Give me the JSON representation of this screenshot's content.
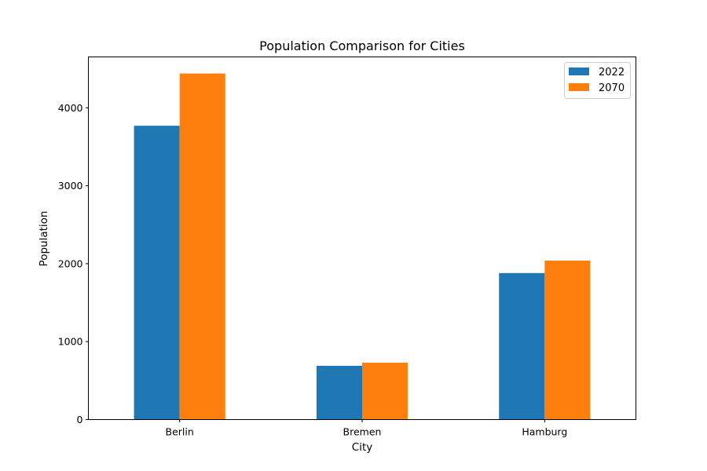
{
  "chart_data": {
    "type": "bar",
    "title": "Population Comparison for Cities",
    "xlabel": "City",
    "ylabel": "Population",
    "categories": [
      "Berlin",
      "Bremen",
      "Hamburg"
    ],
    "series": [
      {
        "name": "2022",
        "values": [
          3770,
          690,
          1880
        ],
        "color": "#1f77b4"
      },
      {
        "name": "2070",
        "values": [
          4440,
          730,
          2040
        ],
        "color": "#ff7f0e"
      }
    ],
    "ylim": [
      0,
      4653
    ],
    "yticks": [
      0,
      1000,
      2000,
      3000,
      4000
    ],
    "legend_position": "top-right",
    "grid": false
  }
}
